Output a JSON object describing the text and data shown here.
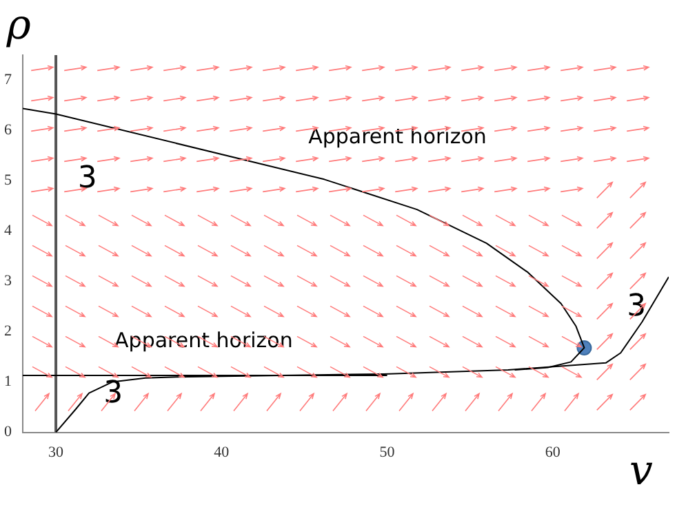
{
  "chart_data": {
    "type": "line",
    "xlabel": "v",
    "ylabel": "ρ",
    "xlim": [
      28,
      67
    ],
    "ylim": [
      0,
      7.5
    ],
    "xticks": [
      30,
      40,
      50,
      60
    ],
    "yticks": [
      0,
      1,
      2,
      3,
      4,
      5,
      6,
      7
    ],
    "grid": false,
    "legend": false,
    "marker": "none",
    "series": [
      {
        "type": "line",
        "color": "#000000",
        "x": [
          28,
          30,
          46.2,
          51.8,
          56,
          58.5,
          60.5,
          61.4,
          61.9,
          61.1,
          59.7,
          57.7
        ],
        "values": [
          6.44,
          6.33,
          5.03,
          4.43,
          3.76,
          3.18,
          2.56,
          2.11,
          1.68,
          1.4,
          1.29,
          1.24
        ]
      },
      {
        "type": "line",
        "color": "#000000",
        "x": [
          30,
          31.2,
          32,
          33.4,
          35.4,
          37.3,
          49.8,
          57.3,
          63.2,
          64.1,
          65.4,
          67
        ],
        "values": [
          0,
          0.46,
          0.78,
          1,
          1.08,
          1.1,
          1.16,
          1.24,
          1.38,
          1.58,
          2.2,
          3.09
        ]
      },
      {
        "type": "line",
        "color": "#000000",
        "x": [
          28,
          50
        ],
        "values": [
          1.13,
          1.13
        ]
      },
      {
        "type": "scatter",
        "color": "#4f81bd",
        "marker": "circle",
        "x": [
          61.9
        ],
        "values": [
          1.68
        ]
      }
    ],
    "ref_lines": [
      {
        "axis": "x",
        "value": 30,
        "color": "#555555"
      }
    ],
    "annotations": [
      "Apparent horizon",
      "Apparent horizon",
      "3",
      "3",
      "3"
    ]
  }
}
